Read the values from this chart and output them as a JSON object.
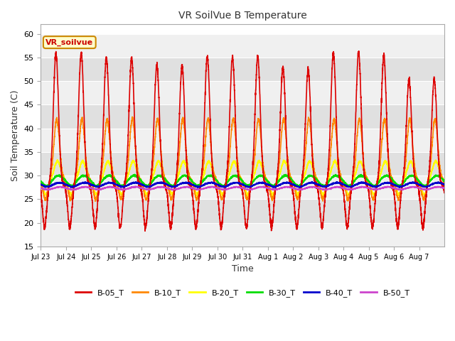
{
  "title": "VR SoilVue B Temperature",
  "xlabel": "Time",
  "ylabel": "Soil Temperature (C)",
  "ylim": [
    15,
    62
  ],
  "yticks": [
    15,
    20,
    25,
    30,
    35,
    40,
    45,
    50,
    55,
    60
  ],
  "fig_bg_color": "#ffffff",
  "plot_bg_color": "#ffffff",
  "series": {
    "B-05_T": {
      "color": "#dd0000",
      "lw": 1.2
    },
    "B-10_T": {
      "color": "#ff8800",
      "lw": 1.2
    },
    "B-20_T": {
      "color": "#ffff00",
      "lw": 1.2
    },
    "B-30_T": {
      "color": "#00dd00",
      "lw": 1.2
    },
    "B-40_T": {
      "color": "#0000cc",
      "lw": 1.2
    },
    "B-50_T": {
      "color": "#cc44cc",
      "lw": 1.2
    }
  },
  "annotation_text": "VR_soilvue",
  "annotation_color": "#cc0000",
  "annotation_bg": "#ffffcc",
  "annotation_border": "#cc8800",
  "n_days": 16,
  "points_per_day": 288,
  "band_colors": [
    "#f0f0f0",
    "#e0e0e0"
  ],
  "tick_labels": [
    "Jul 23",
    "Jul 24",
    "Jul 25",
    "Jul 26",
    "Jul 27",
    "Jul 28",
    "Jul 29",
    "Jul 30",
    "Jul 31",
    "Aug 1",
    "Aug 2",
    "Aug 3",
    "Aug 4",
    "Aug 5",
    "Aug 6",
    "Aug 7"
  ]
}
